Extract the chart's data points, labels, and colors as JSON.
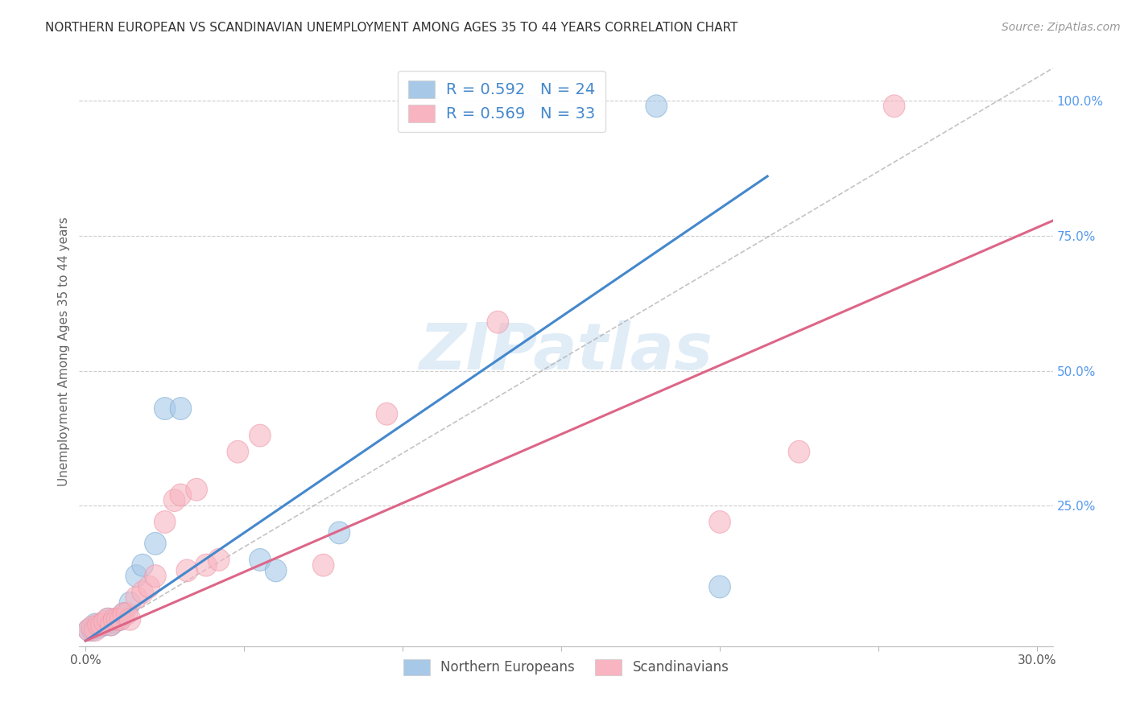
{
  "title": "NORTHERN EUROPEAN VS SCANDINAVIAN UNEMPLOYMENT AMONG AGES 35 TO 44 YEARS CORRELATION CHART",
  "source": "Source: ZipAtlas.com",
  "ylabel": "Unemployment Among Ages 35 to 44 years",
  "x_ticks": [
    0.0,
    0.05,
    0.1,
    0.15,
    0.2,
    0.25,
    0.3
  ],
  "x_tick_labels": [
    "0.0%",
    "",
    "",
    "",
    "",
    "",
    "30.0%"
  ],
  "y_ticks_right": [
    0.0,
    0.25,
    0.5,
    0.75,
    1.0
  ],
  "y_tick_labels_right": [
    "",
    "25.0%",
    "50.0%",
    "75.0%",
    "100.0%"
  ],
  "xlim": [
    -0.002,
    0.305
  ],
  "ylim": [
    -0.01,
    1.08
  ],
  "legend_blue_label": "R = 0.592   N = 24",
  "legend_pink_label": "R = 0.569   N = 33",
  "legend_bottom_blue": "Northern Europeans",
  "legend_bottom_pink": "Scandinavians",
  "blue_color": "#a8c8e8",
  "pink_color": "#f8b4c0",
  "blue_line_color": "#4488cc",
  "pink_line_color": "#dd6688",
  "blue_edge_color": "#7aacd4",
  "pink_edge_color": "#ee99aa",
  "watermark": "ZIPatlas",
  "blue_line_slope": 4.0,
  "blue_line_intercept": 0.0,
  "pink_line_slope": 2.55,
  "pink_line_intercept": 0.0,
  "blue_scatter_x": [
    0.001,
    0.002,
    0.003,
    0.004,
    0.005,
    0.006,
    0.007,
    0.008,
    0.009,
    0.01,
    0.011,
    0.012,
    0.014,
    0.016,
    0.018,
    0.022,
    0.025,
    0.03,
    0.055,
    0.06,
    0.08,
    0.14,
    0.18,
    0.2
  ],
  "blue_scatter_y": [
    0.02,
    0.02,
    0.03,
    0.025,
    0.03,
    0.03,
    0.04,
    0.03,
    0.035,
    0.04,
    0.04,
    0.05,
    0.07,
    0.12,
    0.14,
    0.18,
    0.43,
    0.43,
    0.15,
    0.13,
    0.2,
    0.99,
    0.99,
    0.1
  ],
  "pink_scatter_x": [
    0.001,
    0.002,
    0.003,
    0.004,
    0.005,
    0.006,
    0.007,
    0.008,
    0.009,
    0.01,
    0.011,
    0.012,
    0.013,
    0.014,
    0.016,
    0.018,
    0.02,
    0.022,
    0.025,
    0.028,
    0.03,
    0.032,
    0.035,
    0.038,
    0.042,
    0.048,
    0.055,
    0.075,
    0.095,
    0.13,
    0.2,
    0.225,
    0.255
  ],
  "pink_scatter_y": [
    0.02,
    0.025,
    0.02,
    0.03,
    0.03,
    0.035,
    0.04,
    0.03,
    0.04,
    0.04,
    0.04,
    0.05,
    0.05,
    0.04,
    0.08,
    0.09,
    0.1,
    0.12,
    0.22,
    0.26,
    0.27,
    0.13,
    0.28,
    0.14,
    0.15,
    0.35,
    0.38,
    0.14,
    0.42,
    0.59,
    0.22,
    0.35,
    0.99
  ],
  "blue_scatter_sizes": [
    180,
    180,
    160,
    160,
    160,
    160,
    160,
    160,
    160,
    160,
    160,
    160,
    160,
    160,
    160,
    160,
    220,
    220,
    160,
    160,
    160,
    260,
    260,
    160
  ],
  "pink_scatter_sizes": [
    220,
    200,
    180,
    180,
    180,
    180,
    180,
    180,
    180,
    180,
    180,
    180,
    180,
    180,
    180,
    180,
    180,
    180,
    180,
    180,
    180,
    180,
    180,
    180,
    180,
    180,
    180,
    180,
    180,
    180,
    180,
    180,
    180
  ]
}
